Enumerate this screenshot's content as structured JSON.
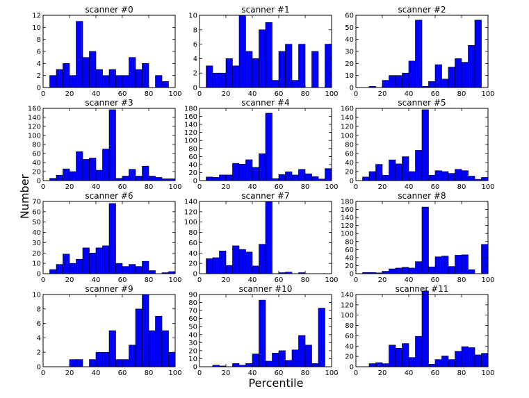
{
  "figure": {
    "xlabel": "Percentile",
    "ylabel": "Number"
  },
  "chart_data": [
    {
      "type": "bar",
      "title": "scanner #0",
      "xlim": [
        0,
        100
      ],
      "ylim": [
        0,
        12
      ],
      "yticks": [
        0,
        2,
        4,
        6,
        8,
        10,
        12
      ],
      "xticks": [
        0,
        20,
        40,
        60,
        80,
        100
      ],
      "bin_width": 5,
      "bin_starts": [
        0,
        5,
        10,
        15,
        20,
        25,
        30,
        35,
        40,
        45,
        50,
        55,
        60,
        65,
        70,
        75,
        80,
        85,
        90,
        95
      ],
      "values": [
        0,
        2,
        3,
        4,
        2,
        11,
        5,
        6,
        3,
        2,
        3,
        2,
        2,
        5,
        3,
        4,
        0,
        2,
        1,
        0
      ]
    },
    {
      "type": "bar",
      "title": "scanner #1",
      "xlim": [
        0,
        100
      ],
      "ylim": [
        0,
        10
      ],
      "yticks": [
        0,
        2,
        4,
        6,
        8,
        10
      ],
      "xticks": [
        0,
        20,
        40,
        60,
        80,
        100
      ],
      "bin_width": 5,
      "bin_starts": [
        0,
        5,
        10,
        15,
        20,
        25,
        30,
        35,
        40,
        45,
        50,
        55,
        60,
        65,
        70,
        75,
        80,
        85,
        90,
        95
      ],
      "values": [
        0,
        3,
        2,
        2,
        4,
        3,
        10,
        5,
        4,
        8,
        9,
        1,
        5,
        6,
        1,
        6,
        0,
        5,
        0,
        6
      ]
    },
    {
      "type": "bar",
      "title": "scanner #2",
      "xlim": [
        0,
        100
      ],
      "ylim": [
        0,
        60
      ],
      "yticks": [
        0,
        10,
        20,
        30,
        40,
        50,
        60
      ],
      "xticks": [
        0,
        20,
        40,
        60,
        80,
        100
      ],
      "bin_width": 5,
      "bin_starts": [
        0,
        5,
        10,
        15,
        20,
        25,
        30,
        35,
        40,
        45,
        50,
        55,
        60,
        65,
        70,
        75,
        80,
        85,
        90,
        95
      ],
      "values": [
        0,
        0,
        1,
        0,
        6,
        10,
        10,
        12,
        22,
        56,
        1,
        5,
        19,
        7,
        17,
        24,
        21,
        35,
        56,
        0
      ]
    },
    {
      "type": "bar",
      "title": "scanner #3",
      "xlim": [
        0,
        100
      ],
      "ylim": [
        0,
        160
      ],
      "yticks": [
        0,
        20,
        40,
        60,
        80,
        100,
        120,
        140,
        160
      ],
      "xticks": [
        0,
        20,
        40,
        60,
        80,
        100
      ],
      "bin_width": 5,
      "bin_starts": [
        0,
        5,
        10,
        15,
        20,
        25,
        30,
        35,
        40,
        45,
        50,
        55,
        60,
        65,
        70,
        75,
        80,
        85,
        90,
        95
      ],
      "values": [
        0,
        5,
        12,
        26,
        20,
        64,
        47,
        50,
        23,
        70,
        157,
        5,
        10,
        25,
        10,
        32,
        10,
        7,
        4,
        4
      ]
    },
    {
      "type": "bar",
      "title": "scanner #4",
      "xlim": [
        0,
        100
      ],
      "ylim": [
        0,
        180
      ],
      "yticks": [
        0,
        20,
        40,
        60,
        80,
        100,
        120,
        140,
        160,
        180
      ],
      "xticks": [
        0,
        20,
        40,
        60,
        80,
        100
      ],
      "bin_width": 5,
      "bin_starts": [
        0,
        5,
        10,
        15,
        20,
        25,
        30,
        35,
        40,
        45,
        50,
        55,
        60,
        65,
        70,
        75,
        80,
        85,
        90,
        95
      ],
      "values": [
        0,
        9,
        8,
        14,
        14,
        43,
        41,
        52,
        33,
        67,
        168,
        5,
        15,
        22,
        14,
        28,
        17,
        10,
        4,
        30
      ]
    },
    {
      "type": "bar",
      "title": "scanner #5",
      "xlim": [
        0,
        100
      ],
      "ylim": [
        0,
        160
      ],
      "yticks": [
        0,
        20,
        40,
        60,
        80,
        100,
        120,
        140,
        160
      ],
      "xticks": [
        0,
        20,
        40,
        60,
        80,
        100
      ],
      "bin_width": 5,
      "bin_starts": [
        0,
        5,
        10,
        15,
        20,
        25,
        30,
        35,
        40,
        45,
        50,
        55,
        60,
        65,
        70,
        75,
        80,
        85,
        90,
        95
      ],
      "values": [
        0,
        8,
        20,
        36,
        12,
        46,
        37,
        53,
        20,
        67,
        157,
        12,
        22,
        20,
        16,
        25,
        22,
        10,
        3,
        7
      ]
    },
    {
      "type": "bar",
      "title": "scanner #6",
      "xlim": [
        0,
        100
      ],
      "ylim": [
        0,
        70
      ],
      "yticks": [
        0,
        10,
        20,
        30,
        40,
        50,
        60,
        70
      ],
      "xticks": [
        0,
        20,
        40,
        60,
        80,
        100
      ],
      "bin_width": 5,
      "bin_starts": [
        0,
        5,
        10,
        15,
        20,
        25,
        30,
        35,
        40,
        45,
        50,
        55,
        60,
        65,
        70,
        75,
        80,
        85,
        90,
        95
      ],
      "values": [
        0,
        4,
        9,
        19,
        10,
        14,
        25,
        20,
        25,
        27,
        68,
        10,
        7,
        9,
        7,
        12,
        3,
        0,
        1,
        2
      ]
    },
    {
      "type": "bar",
      "title": "scanner #7",
      "xlim": [
        0,
        100
      ],
      "ylim": [
        0,
        140
      ],
      "yticks": [
        0,
        20,
        40,
        60,
        80,
        100,
        120,
        140
      ],
      "xticks": [
        0,
        20,
        40,
        60,
        80,
        100
      ],
      "bin_width": 5,
      "bin_starts": [
        0,
        5,
        10,
        15,
        20,
        25,
        30,
        35,
        40,
        45,
        50,
        55,
        60,
        65,
        70,
        75,
        80,
        85,
        90,
        95
      ],
      "values": [
        0,
        29,
        31,
        44,
        16,
        54,
        47,
        42,
        15,
        57,
        140,
        0,
        2,
        3,
        0,
        2,
        0,
        0,
        0,
        0
      ]
    },
    {
      "type": "bar",
      "title": "scanner #8",
      "xlim": [
        0,
        100
      ],
      "ylim": [
        0,
        180
      ],
      "yticks": [
        0,
        20,
        40,
        60,
        80,
        100,
        120,
        140,
        160,
        180
      ],
      "xticks": [
        0,
        20,
        40,
        60,
        80,
        100
      ],
      "bin_width": 5,
      "bin_starts": [
        0,
        5,
        10,
        15,
        20,
        25,
        30,
        35,
        40,
        45,
        50,
        55,
        60,
        65,
        70,
        75,
        80,
        85,
        90,
        95
      ],
      "values": [
        0,
        3,
        3,
        2,
        6,
        12,
        14,
        16,
        14,
        30,
        166,
        17,
        42,
        44,
        18,
        46,
        47,
        10,
        0,
        73
      ]
    },
    {
      "type": "bar",
      "title": "scanner #9",
      "xlim": [
        0,
        100
      ],
      "ylim": [
        0,
        10
      ],
      "yticks": [
        0,
        2,
        4,
        6,
        8,
        10
      ],
      "xticks": [
        0,
        20,
        40,
        60,
        80,
        100
      ],
      "bin_width": 5,
      "bin_starts": [
        0,
        5,
        10,
        15,
        20,
        25,
        30,
        35,
        40,
        45,
        50,
        55,
        60,
        65,
        70,
        75,
        80,
        85,
        90,
        95
      ],
      "values": [
        0,
        0,
        0,
        0,
        1,
        1,
        0,
        1,
        2,
        2,
        5,
        1,
        1,
        3,
        8,
        10,
        5,
        7,
        5,
        2
      ]
    },
    {
      "type": "bar",
      "title": "scanner #10",
      "xlim": [
        0,
        100
      ],
      "ylim": [
        0,
        90
      ],
      "yticks": [
        0,
        10,
        20,
        30,
        40,
        50,
        60,
        70,
        80,
        90
      ],
      "xticks": [
        0,
        20,
        40,
        60,
        80,
        100
      ],
      "bin_width": 5,
      "bin_starts": [
        0,
        5,
        10,
        15,
        20,
        25,
        30,
        35,
        40,
        45,
        50,
        55,
        60,
        65,
        70,
        75,
        80,
        85,
        90,
        95
      ],
      "values": [
        0,
        0,
        2,
        1,
        0,
        4,
        2,
        4,
        16,
        83,
        7,
        17,
        20,
        8,
        21,
        39,
        27,
        4,
        73,
        0
      ]
    },
    {
      "type": "bar",
      "title": "scanner #11",
      "xlim": [
        0,
        100
      ],
      "ylim": [
        0,
        140
      ],
      "yticks": [
        0,
        20,
        40,
        60,
        80,
        100,
        120,
        140
      ],
      "xticks": [
        0,
        20,
        40,
        60,
        80,
        100
      ],
      "bin_width": 5,
      "bin_starts": [
        0,
        5,
        10,
        15,
        20,
        25,
        30,
        35,
        40,
        45,
        50,
        55,
        60,
        65,
        70,
        75,
        80,
        85,
        90,
        95
      ],
      "values": [
        0,
        0,
        6,
        8,
        6,
        42,
        36,
        45,
        18,
        59,
        147,
        5,
        14,
        21,
        14,
        30,
        39,
        37,
        23,
        26
      ]
    }
  ]
}
